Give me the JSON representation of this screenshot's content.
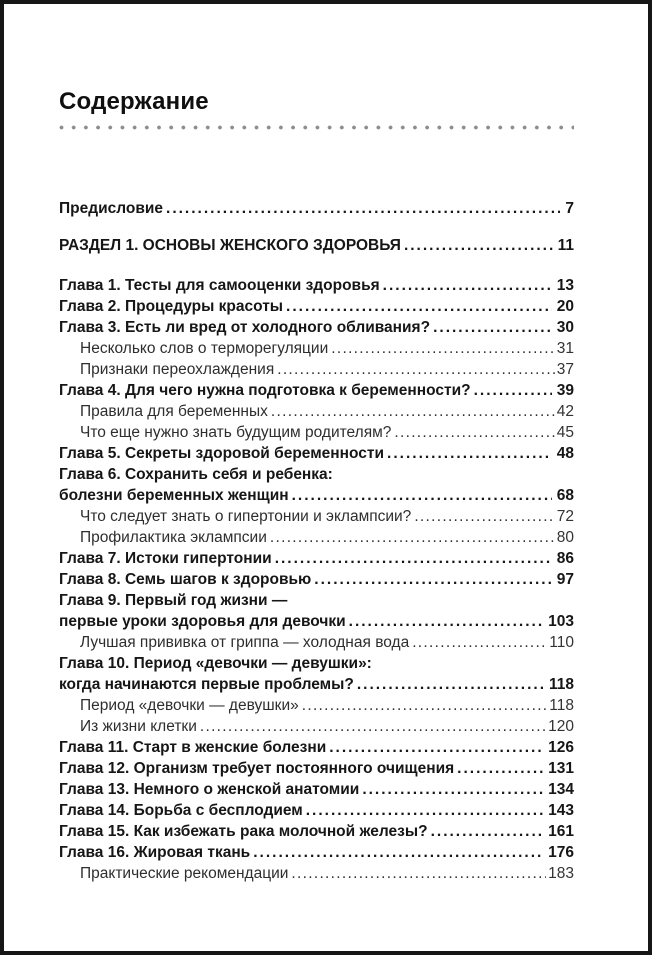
{
  "page": {
    "title": "Содержание",
    "colors": {
      "text": "#161616",
      "separator_dots": "#8d8d8d",
      "frame": "#161616",
      "background": "#ffffff"
    },
    "toc": {
      "entries": [
        {
          "text": "Предисловие",
          "page": "7",
          "type": "chapter",
          "mt": 0
        },
        {
          "text": "РАЗДЕЛ 1. ОСНОВЫ ЖЕНСКОГО ЗДОРОВЬЯ",
          "page": "11",
          "type": "chapter",
          "mt": 16
        },
        {
          "text": "Глава 1. Тесты для самооценки здоровья",
          "page": "13",
          "type": "chapter",
          "mt": 19
        },
        {
          "text": "Глава 2. Процедуры красоты",
          "page": "20",
          "type": "chapter",
          "mt": 0
        },
        {
          "text": "Глава 3. Есть ли вред от холодного обливания?",
          "page": "30",
          "type": "chapter",
          "mt": 0
        },
        {
          "text": "Несколько слов о терморегуляции",
          "page": "31",
          "type": "sub",
          "mt": 0
        },
        {
          "text": "Признаки переохлаждения",
          "page": "37",
          "type": "sub",
          "mt": 0
        },
        {
          "text": "Глава 4. Для чего нужна подготовка к беременности?",
          "page": "39",
          "type": "chapter",
          "mt": 0
        },
        {
          "text": "Правила для беременных",
          "page": "42",
          "type": "sub",
          "mt": 0
        },
        {
          "text": "Что еще нужно знать будущим родителям?",
          "page": "45",
          "type": "sub",
          "mt": 0
        },
        {
          "text": "Глава 5. Секреты здоровой беременности",
          "page": "48",
          "type": "chapter",
          "mt": 0
        },
        {
          "text": "Глава 6. Сохранить себя и ребенка:",
          "page": null,
          "type": "chapter-nolead",
          "mt": 0
        },
        {
          "text": "болезни беременных женщин",
          "page": "68",
          "type": "chapter",
          "mt": 0
        },
        {
          "text": "Что следует знать о гипертонии и эклампсии?",
          "page": "72",
          "type": "sub",
          "mt": 0
        },
        {
          "text": "Профилактика эклампсии",
          "page": "80",
          "type": "sub",
          "mt": 0
        },
        {
          "text": "Глава 7. Истоки гипертонии",
          "page": "86",
          "type": "chapter",
          "mt": 0
        },
        {
          "text": "Глава 8. Семь шагов к здоровью",
          "page": "97",
          "type": "chapter",
          "mt": 0
        },
        {
          "text": "Глава 9. Первый год жизни —",
          "page": null,
          "type": "chapter-nolead",
          "mt": 0
        },
        {
          "text": "первые уроки здоровья для девочки",
          "page": "103",
          "type": "chapter",
          "mt": 0
        },
        {
          "text": "Лучшая прививка от гриппа — холодная вода",
          "page": "110",
          "type": "sub",
          "mt": 0
        },
        {
          "text": "Глава 10. Период «девочки — девушки»:",
          "page": null,
          "type": "chapter-nolead",
          "mt": 0
        },
        {
          "text": "когда начинаются первые проблемы?",
          "page": "118",
          "type": "chapter",
          "mt": 0
        },
        {
          "text": "Период «девочки — девушки»",
          "page": "118",
          "type": "sub",
          "mt": 0
        },
        {
          "text": "Из жизни клетки",
          "page": "120",
          "type": "sub",
          "mt": 0
        },
        {
          "text": "Глава 11. Старт в женские болезни",
          "page": "126",
          "type": "chapter",
          "mt": 0
        },
        {
          "text": "Глава 12. Организм требует постоянного очищения",
          "page": "131",
          "type": "chapter",
          "mt": 0
        },
        {
          "text": "Глава 13. Немного о женской анатомии",
          "page": "134",
          "type": "chapter",
          "mt": 0
        },
        {
          "text": "Глава 14. Борьба с бесплодием",
          "page": "143",
          "type": "chapter",
          "mt": 0
        },
        {
          "text": "Глава 15. Как избежать рака молочной железы?",
          "page": "161",
          "type": "chapter",
          "mt": 0
        },
        {
          "text": "Глава 16. Жировая ткань",
          "page": "176",
          "type": "chapter",
          "mt": 0
        },
        {
          "text": "Практические рекомендации",
          "page": "183",
          "type": "sub",
          "mt": 0
        }
      ]
    }
  }
}
